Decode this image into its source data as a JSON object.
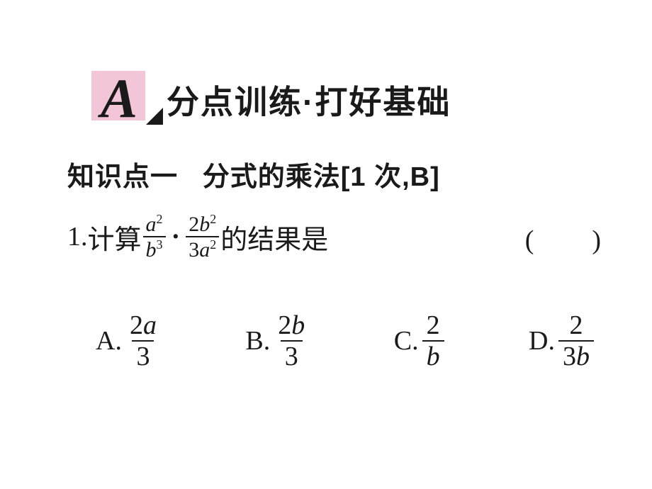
{
  "header": {
    "letter": "A",
    "title": "分点训练·打好基础",
    "letter_box_bg": "#f2c5d8",
    "text_color": "#1a1a1a",
    "title_fontsize": 46
  },
  "knowledge_point": {
    "label": "知识点一",
    "topic": "分式的乘法",
    "meta": "[1 次,B]",
    "fontsize": 38
  },
  "question": {
    "number": "1.",
    "prefix": "计算",
    "frac1_num": "a",
    "frac1_num_exp": "2",
    "frac1_den": "b",
    "frac1_den_exp": "3",
    "operator": "·",
    "frac2_num_coef": "2",
    "frac2_num_var": "b",
    "frac2_num_exp": "2",
    "frac2_den_coef": "3",
    "frac2_den_var": "a",
    "frac2_den_exp": "2",
    "suffix": "的结果是",
    "paren": "(　　)",
    "fontsize": 38
  },
  "options": [
    {
      "label": "A.",
      "num_coef": "2",
      "num_var": "a",
      "den": "3"
    },
    {
      "label": "B.",
      "num_coef": "2",
      "num_var": "b",
      "den": "3"
    },
    {
      "label": "C.",
      "num_coef": "2",
      "num_var": "",
      "den": "b"
    },
    {
      "label": "D.",
      "num_coef": "2",
      "num_var": "",
      "den_coef": "3",
      "den_var": "b"
    }
  ],
  "colors": {
    "background": "#ffffff",
    "text": "#1a1a1a",
    "pink": "#f2c5d8"
  }
}
